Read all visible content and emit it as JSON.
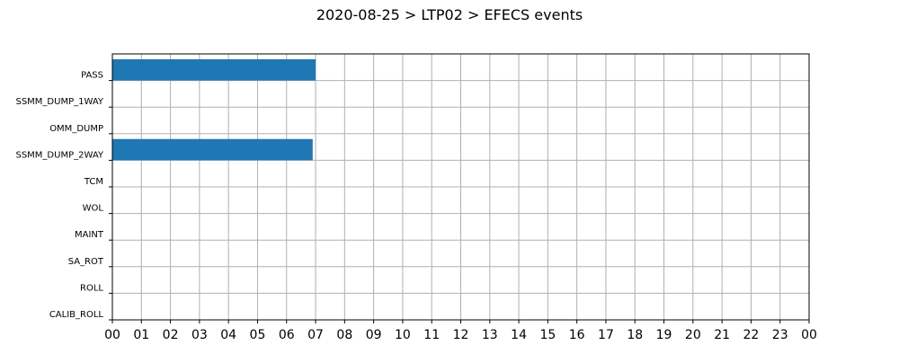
{
  "chart_data": {
    "type": "gantt",
    "title": "2020-08-25 > LTP02 > EFECS events",
    "xlabel": "",
    "ylabel": "",
    "x_unit": "hour of day",
    "xlim": [
      0,
      24
    ],
    "x_ticks": [
      "00",
      "01",
      "02",
      "03",
      "04",
      "05",
      "06",
      "07",
      "08",
      "09",
      "10",
      "11",
      "12",
      "13",
      "14",
      "15",
      "16",
      "17",
      "18",
      "19",
      "20",
      "21",
      "22",
      "23",
      "00"
    ],
    "categories": [
      "PASS",
      "SSMM_DUMP_1WAY",
      "OMM_DUMP",
      "SSMM_DUMP_2WAY",
      "TCM",
      "WOL",
      "MAINT",
      "SA_ROT",
      "ROLL",
      "CALIB_ROLL"
    ],
    "bars": [
      {
        "category": "PASS",
        "start": 0.0,
        "end": 7.0
      },
      {
        "category": "SSMM_DUMP_2WAY",
        "start": 0.0,
        "end": 6.9
      }
    ],
    "grid": true,
    "colors": {
      "bar": "#1f77b4",
      "grid": "#b0b0b0",
      "axis": "#000000"
    }
  }
}
